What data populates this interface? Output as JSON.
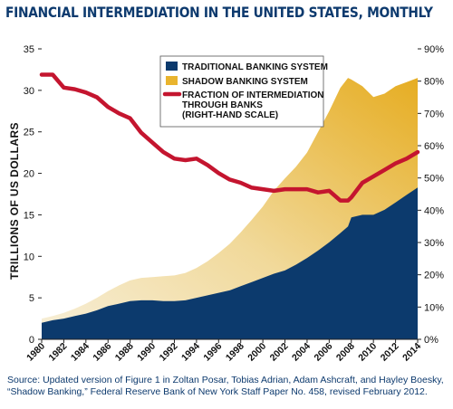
{
  "title": "FINANCIAL INTERMEDIATION IN THE UNITED STATES, MONTHLY",
  "source": "Source: Updated version of Figure 1 in Zoltan Posar, Tobias Adrian, Adam Ashcraft, and Hayley Boesky, “Shadow Banking,” Federal Reserve Bank of New York Staff Paper No. 458, revised February 2012.",
  "colors": {
    "traditional": "#0c3a6d",
    "shadow": "#e9b42e",
    "fraction_line": "#c4152f",
    "title": "#0d3a6e"
  },
  "chart_data": {
    "type": "area",
    "ylabel": "TRILLIONS OF US DOLLARS",
    "y2label": "",
    "ylim": [
      0,
      35
    ],
    "y2lim": [
      0,
      90
    ],
    "yticks": [
      "0",
      "5",
      "10",
      "15",
      "20",
      "25",
      "30",
      "35"
    ],
    "y2ticks": [
      "0%",
      "10%",
      "20%",
      "30%",
      "40%",
      "50%",
      "60%",
      "70%",
      "80%",
      "90%"
    ],
    "xlim": [
      1980,
      2014
    ],
    "xticks": [
      "1980",
      "1982",
      "1984",
      "1986",
      "1988",
      "1990",
      "1992",
      "1994",
      "1996",
      "1998",
      "2000",
      "2002",
      "2004",
      "2006",
      "2008",
      "2010",
      "2012",
      "2014"
    ],
    "legend_position": "top-center",
    "legend": [
      "TRADITIONAL BANKING SYSTEM",
      "SHADOW BANKING SYSTEM",
      "FRACTION OF INTERMEDIATION",
      "THROUGH BANKS",
      "(RIGHT-HAND SCALE)"
    ],
    "x": [
      1980,
      1981,
      1982,
      1983,
      1984,
      1985,
      1986,
      1987,
      1988,
      1989,
      1990,
      1991,
      1992,
      1993,
      1994,
      1995,
      1996,
      1997,
      1998,
      1999,
      2000,
      2001,
      2002,
      2003,
      2004,
      2005,
      2006,
      2007,
      2007.7,
      2008,
      2009,
      2010,
      2011,
      2012,
      2013,
      2014
    ],
    "series": [
      {
        "name": "TRADITIONAL BANKING SYSTEM",
        "axis": "left",
        "values": [
          2.0,
          2.3,
          2.5,
          2.8,
          3.1,
          3.5,
          4.0,
          4.3,
          4.6,
          4.7,
          4.7,
          4.6,
          4.6,
          4.7,
          5.0,
          5.3,
          5.6,
          5.9,
          6.4,
          6.9,
          7.4,
          7.9,
          8.3,
          9.0,
          9.8,
          10.7,
          11.7,
          12.8,
          13.6,
          14.7,
          15.0,
          15.0,
          15.6,
          16.5,
          17.4,
          18.3
        ]
      },
      {
        "name": "SHADOW BANKING SYSTEM",
        "axis": "left",
        "stacked_total": [
          2.5,
          2.8,
          3.2,
          3.7,
          4.3,
          5.0,
          5.8,
          6.5,
          7.1,
          7.4,
          7.5,
          7.6,
          7.7,
          8.0,
          8.6,
          9.4,
          10.4,
          11.5,
          12.9,
          14.4,
          16.0,
          17.9,
          19.4,
          20.8,
          22.5,
          25.0,
          27.5,
          30.3,
          31.5,
          31.3,
          30.5,
          29.2,
          29.6,
          30.5,
          31.0,
          31.5
        ]
      },
      {
        "name": "FRACTION OF INTERMEDIATION THROUGH BANKS (RIGHT-HAND SCALE)",
        "axis": "right",
        "values": [
          82,
          82,
          78,
          77.5,
          76.5,
          75,
          72,
          70,
          68.5,
          64,
          61,
          58,
          56,
          55.5,
          56,
          54,
          51.5,
          49.5,
          48.5,
          47,
          46.5,
          46,
          46.5,
          46.5,
          46.5,
          45.5,
          46,
          43,
          43,
          44,
          48.5,
          50.5,
          52.5,
          54.5,
          56,
          58
        ]
      }
    ]
  }
}
